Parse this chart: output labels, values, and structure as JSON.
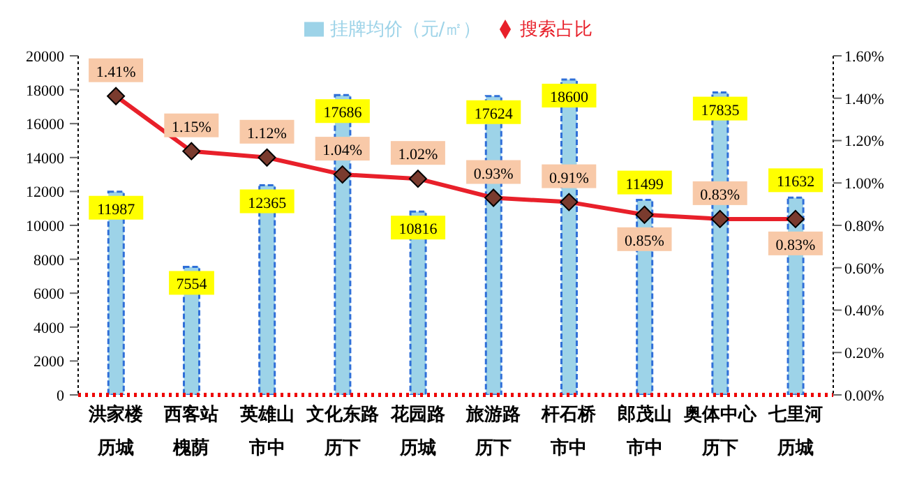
{
  "chart_data": {
    "type": "bar",
    "categories": [
      "洪家楼历城",
      "西客站槐荫",
      "英雄山市中",
      "文化东路历下",
      "花园路历城",
      "旅游路历下",
      "杆石桥市中",
      "郎茂山市中",
      "奥体中心历下",
      "七里河历城"
    ],
    "series": [
      {
        "name": "挂牌均价（元/㎡）",
        "color": "#9dd3e8",
        "values": [
          11987,
          7554,
          12365,
          17686,
          10816,
          17624,
          18600,
          11499,
          17835,
          11632
        ],
        "value_labels": [
          "11987",
          "7554",
          "12365",
          "17686",
          "10816",
          "17624",
          "18600",
          "11499",
          "17835",
          "11632"
        ]
      },
      {
        "name": "搜索占比",
        "type": "line",
        "axis": "y2",
        "color": "#e8202a",
        "values": [
          1.41,
          1.15,
          1.12,
          1.04,
          1.02,
          0.93,
          0.91,
          0.85,
          0.83,
          0.83
        ],
        "value_labels": [
          "1.41%",
          "1.15%",
          "1.12%",
          "1.04%",
          "1.02%",
          "0.93%",
          "0.91%",
          "0.85%",
          "0.83%",
          "0.83%"
        ]
      }
    ],
    "ylim": [
      0,
      20000
    ],
    "yticks": [
      0,
      2000,
      4000,
      6000,
      8000,
      10000,
      12000,
      14000,
      16000,
      18000,
      20000
    ],
    "y2lim": [
      0,
      1.6
    ],
    "y2ticks": [
      {
        "value": 0,
        "label": "0.00%"
      },
      {
        "value": 0.2,
        "label": "0.20%"
      },
      {
        "value": 0.4,
        "label": "0.40%"
      },
      {
        "value": 0.6,
        "label": "0.60%"
      },
      {
        "value": 0.8,
        "label": "0.80%"
      },
      {
        "value": 1.0,
        "label": "1.00%"
      },
      {
        "value": 1.2,
        "label": "1.20%"
      },
      {
        "value": 1.4,
        "label": "1.40%"
      },
      {
        "value": 1.6,
        "label": "1.60%"
      }
    ],
    "legend": "top",
    "marker": "diamond",
    "grid": false
  }
}
